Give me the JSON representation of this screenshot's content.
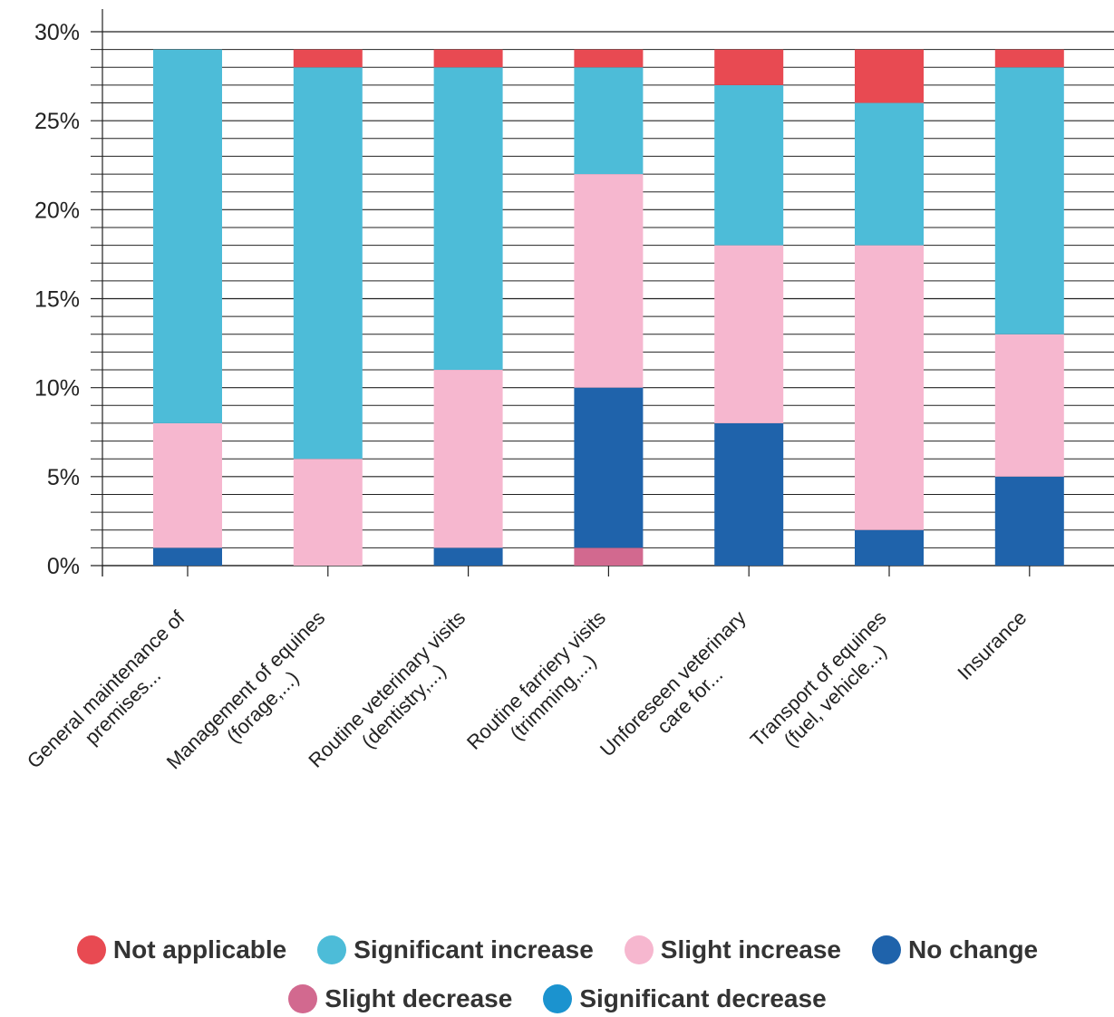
{
  "chart_data": {
    "type": "stacked_bar",
    "categories": [
      "General maintenance of\npremises...",
      "Management of equines\n(forage,...)",
      "Routine veterinary visits\n(dentistry,...)",
      "Routine farriery visits\n(trimming,...)",
      "Unforeseen veterinary\ncare for...",
      "Transport of equines\n(fuel, vehicle...)",
      "Insurance"
    ],
    "series": [
      {
        "name": "Not applicable",
        "color": "#e84a52",
        "values": [
          0,
          1,
          1,
          1,
          2,
          3,
          1
        ]
      },
      {
        "name": "Significant increase",
        "color": "#4dbcd8",
        "values": [
          21,
          22,
          17,
          6,
          9,
          8,
          15
        ]
      },
      {
        "name": "Slight increase",
        "color": "#f6b7cf",
        "values": [
          7,
          6,
          10,
          12,
          10,
          16,
          8
        ]
      },
      {
        "name": "No change",
        "color": "#1f63ab",
        "values": [
          1,
          0,
          1,
          9,
          8,
          2,
          5
        ]
      },
      {
        "name": "Slight decrease",
        "color": "#d2698f",
        "values": [
          0,
          0,
          0,
          1,
          0,
          0,
          0
        ]
      },
      {
        "name": "Significant decrease",
        "color": "#1b93cf",
        "values": [
          0,
          0,
          0,
          0,
          0,
          0,
          0
        ]
      }
    ],
    "ylim": [
      0,
      30
    ],
    "yticks": [
      {
        "value": 0,
        "label": "0%"
      },
      {
        "value": 5,
        "label": "5%"
      },
      {
        "value": 10,
        "label": "10%"
      },
      {
        "value": 15,
        "label": "15%"
      },
      {
        "value": 20,
        "label": "20%"
      },
      {
        "value": 25,
        "label": "25%"
      },
      {
        "value": 30,
        "label": "30%"
      }
    ],
    "minor_yticks": [
      1,
      2,
      3,
      4,
      6,
      7,
      8,
      9,
      11,
      12,
      13,
      14,
      16,
      17,
      18,
      19,
      21,
      22,
      23,
      24,
      26,
      27,
      28,
      29
    ],
    "grid": true
  }
}
